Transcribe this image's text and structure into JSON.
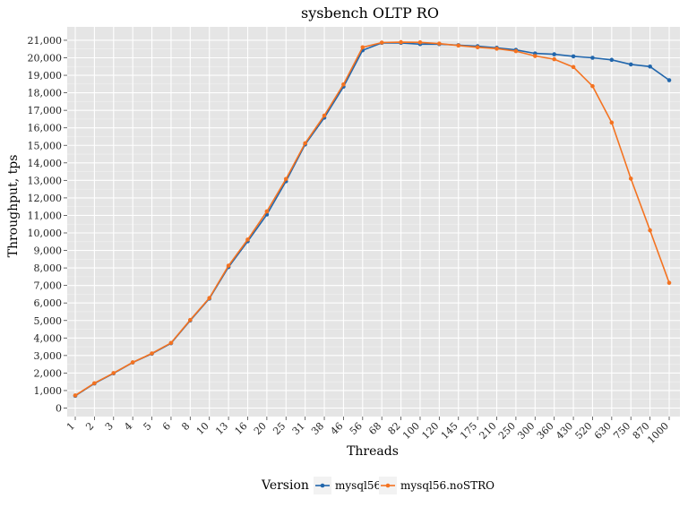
{
  "chart_data": {
    "type": "line",
    "title": "sysbench OLTP RO",
    "xlabel": "Threads",
    "ylabel": "Throughput, tps",
    "x_axis_type": "categorical",
    "categories": [
      "1",
      "2",
      "3",
      "4",
      "5",
      "6",
      "8",
      "10",
      "13",
      "16",
      "20",
      "25",
      "31",
      "38",
      "46",
      "56",
      "68",
      "82",
      "100",
      "120",
      "145",
      "175",
      "210",
      "250",
      "300",
      "360",
      "430",
      "520",
      "630",
      "750",
      "870",
      "1000"
    ],
    "ylim": [
      0,
      21000
    ],
    "y_ticks": [
      "0",
      "1,000",
      "2,000",
      "3,000",
      "4,000",
      "5,000",
      "6,000",
      "7,000",
      "8,000",
      "9,000",
      "10,000",
      "11,000",
      "12,000",
      "13,000",
      "14,000",
      "15,000",
      "16,000",
      "17,000",
      "18,000",
      "19,000",
      "20,000",
      "21,000"
    ],
    "grid": true,
    "legend": {
      "title": "Version",
      "position": "bottom"
    },
    "series": [
      {
        "name": "mysql56",
        "color": "#2166ac",
        "values": [
          700,
          1400,
          1980,
          2600,
          3100,
          3700,
          5000,
          6250,
          8050,
          9520,
          11050,
          12950,
          15050,
          16580,
          18350,
          20430,
          20850,
          20850,
          20780,
          20780,
          20720,
          20660,
          20570,
          20450,
          20250,
          20200,
          20080,
          20000,
          19880,
          19620,
          19500,
          18720
        ]
      },
      {
        "name": "mysql56.noSTRO",
        "color": "#f47321",
        "values": [
          720,
          1420,
          2000,
          2610,
          3120,
          3720,
          5030,
          6280,
          8130,
          9620,
          11230,
          13080,
          15120,
          16700,
          18480,
          20600,
          20870,
          20890,
          20880,
          20810,
          20700,
          20600,
          20520,
          20380,
          20100,
          19920,
          19470,
          18380,
          16300,
          13100,
          10150,
          7150
        ]
      }
    ]
  }
}
